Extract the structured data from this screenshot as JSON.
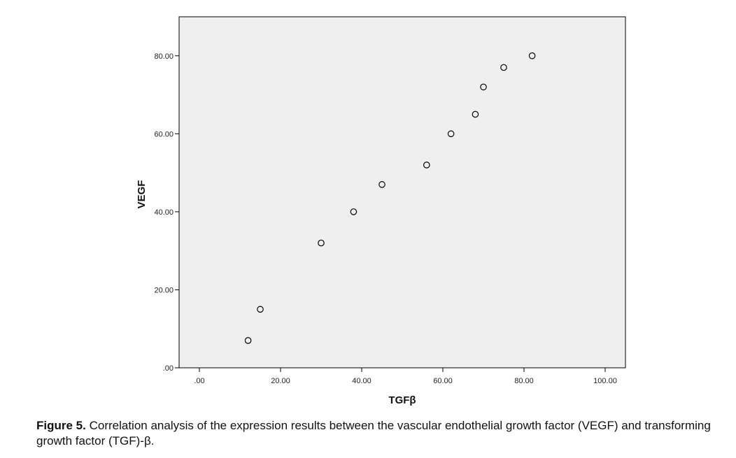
{
  "caption": {
    "label": "Figure 5.",
    "text": " Correlation analysis of the expression results between the vascular endothelial growth factor (VEGF) and transforming growth factor (TGF)-β."
  },
  "chart_data": {
    "type": "scatter",
    "xlabel": "TGFβ",
    "ylabel": "VEGF",
    "xlim": [
      -5,
      105
    ],
    "ylim": [
      0,
      90
    ],
    "xticks": [
      0,
      20,
      40,
      60,
      80,
      100
    ],
    "xtick_labels": [
      ".00",
      "20.00",
      "40.00",
      "60.00",
      "80.00",
      "100.00"
    ],
    "yticks": [
      0,
      20,
      40,
      60,
      80
    ],
    "ytick_labels": [
      ".00",
      "20.00",
      "40.00",
      "60.00",
      "80.00"
    ],
    "points": [
      {
        "x": 12,
        "y": 7
      },
      {
        "x": 15,
        "y": 15
      },
      {
        "x": 30,
        "y": 32
      },
      {
        "x": 38,
        "y": 40
      },
      {
        "x": 45,
        "y": 47
      },
      {
        "x": 56,
        "y": 52
      },
      {
        "x": 62,
        "y": 60
      },
      {
        "x": 68,
        "y": 65
      },
      {
        "x": 70,
        "y": 72
      },
      {
        "x": 75,
        "y": 77
      },
      {
        "x": 82,
        "y": 80
      }
    ],
    "grid": false,
    "marker": "open-circle",
    "colors": {
      "plot_background": "#efefef",
      "frame": "#000000",
      "marker": "#000000"
    }
  }
}
